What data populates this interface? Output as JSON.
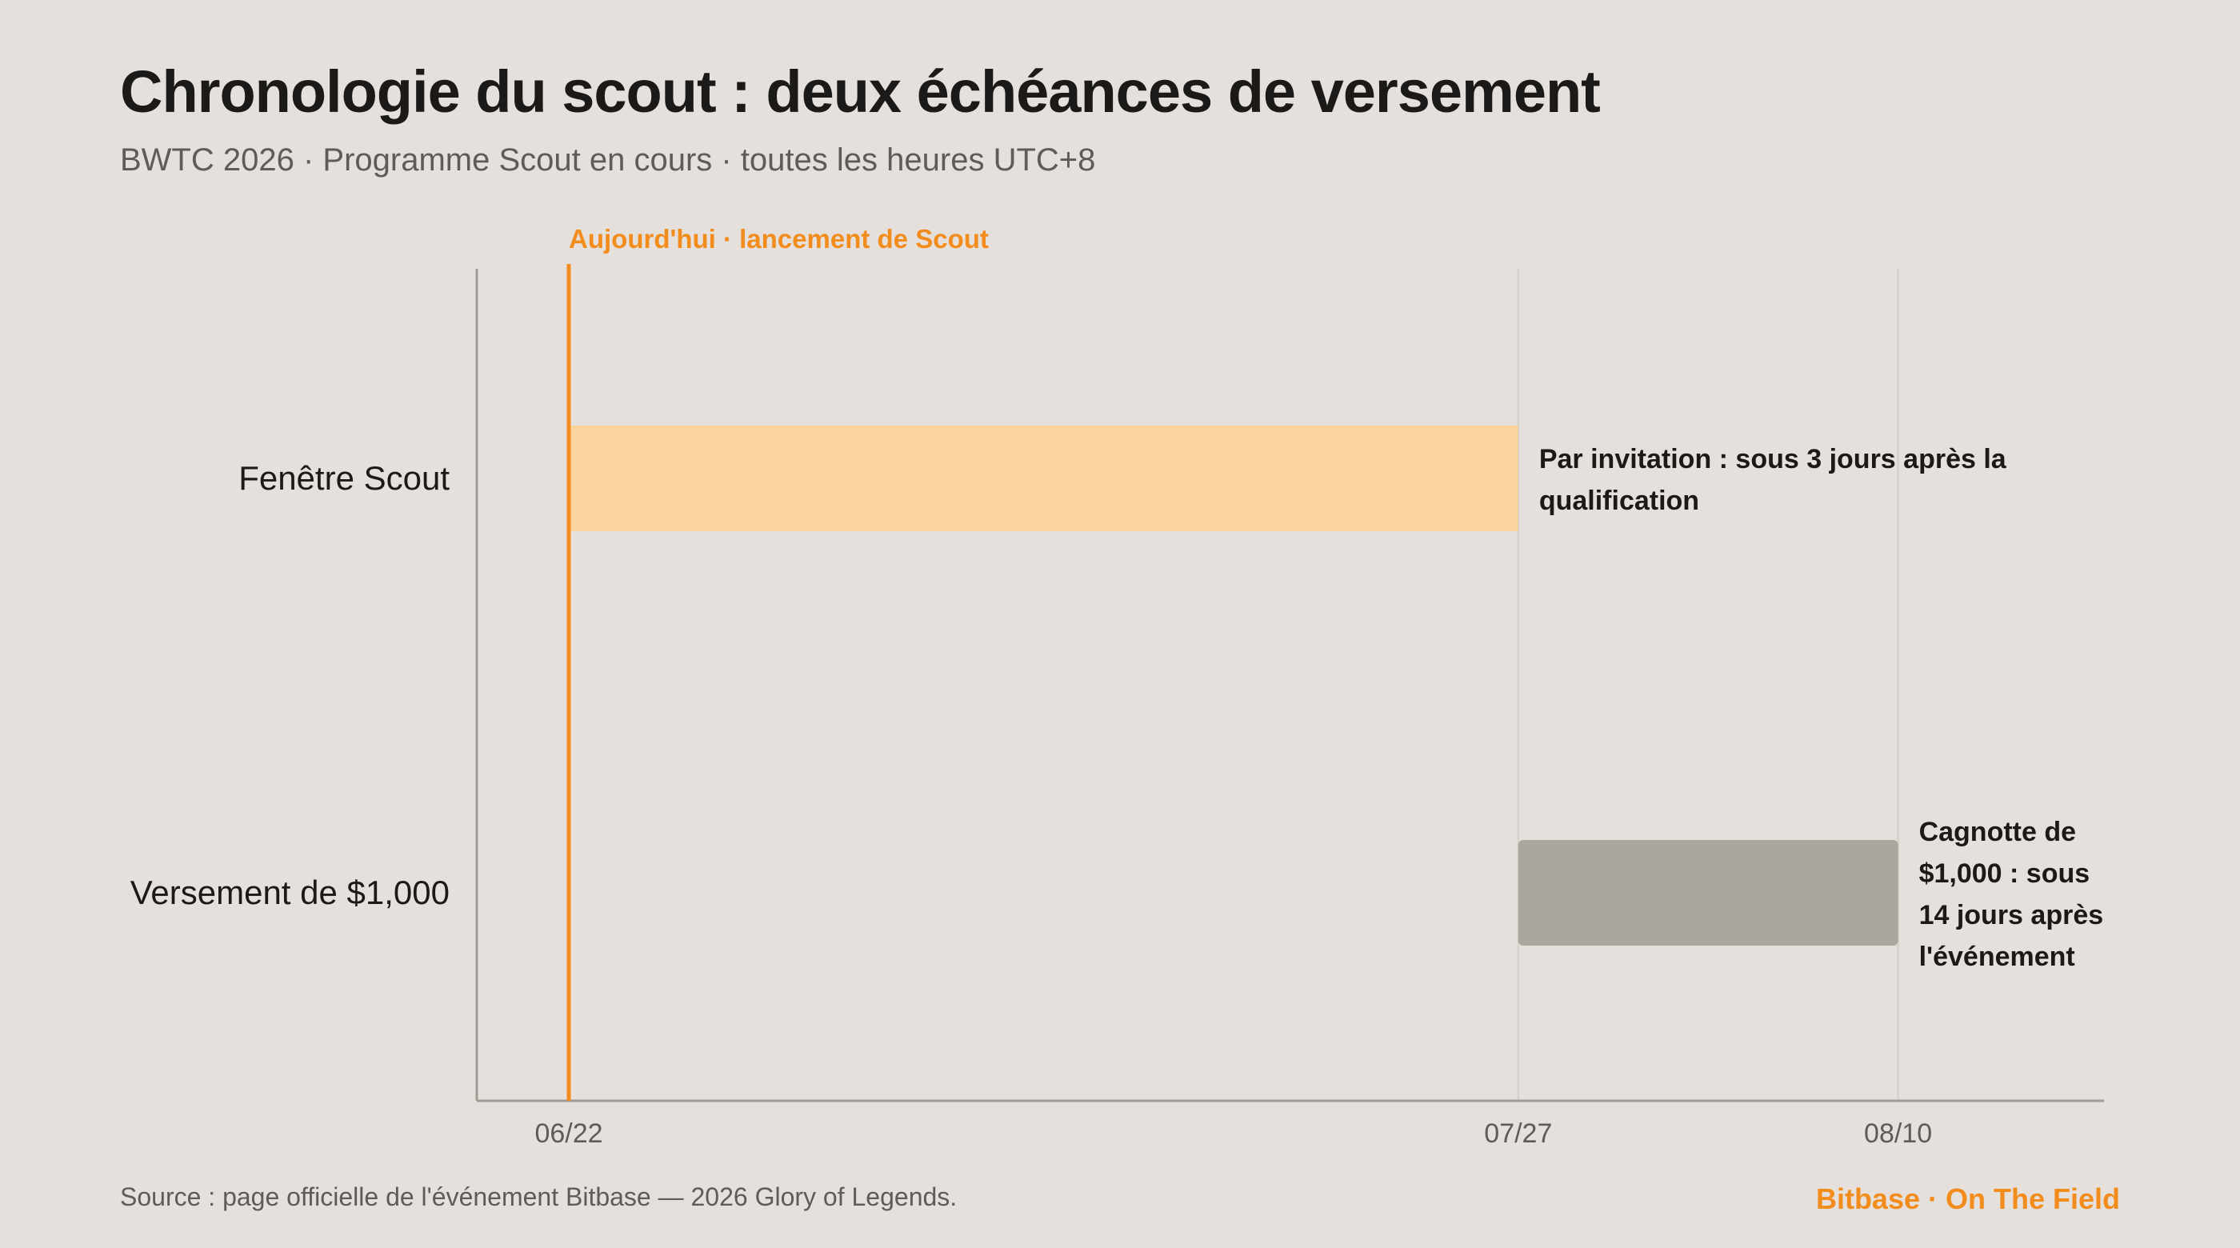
{
  "title": "Chronologie du scout : deux échéances de versement",
  "subtitle": "BWTC 2026 · Programme Scout en cours · toutes les heures UTC+8",
  "source": "Source : page officielle de l'événement Bitbase — 2026 Glory of Legends.",
  "brand": "Bitbase · On The Field",
  "colors": {
    "accent": "#f28c1c",
    "scout_bar": "#fad49c",
    "payout_bar": "#aba6a0",
    "axis": "#a09b95",
    "grid": "#d2cdc7"
  },
  "chart_data": {
    "type": "gantt",
    "x_axis": {
      "type": "date",
      "ticks": [
        "06/22",
        "07/27",
        "08/10"
      ],
      "range": [
        "06/22",
        "08/10"
      ]
    },
    "today_marker": {
      "date": "06/22",
      "label": "Aujourd'hui · lancement de Scout"
    },
    "tasks": [
      {
        "label": "Fenêtre Scout",
        "start": "06/22",
        "end": "07/27",
        "annotation": [
          "Par invitation : sous 3 jours après la",
          "qualification"
        ],
        "color": "#fad49c"
      },
      {
        "label": "Versement de $1,000",
        "start": "07/27",
        "end": "08/10",
        "annotation": [
          "Cagnotte de",
          "$1,000 : sous",
          "14 jours après",
          "l'événement"
        ],
        "color": "#aba6a0"
      }
    ]
  }
}
